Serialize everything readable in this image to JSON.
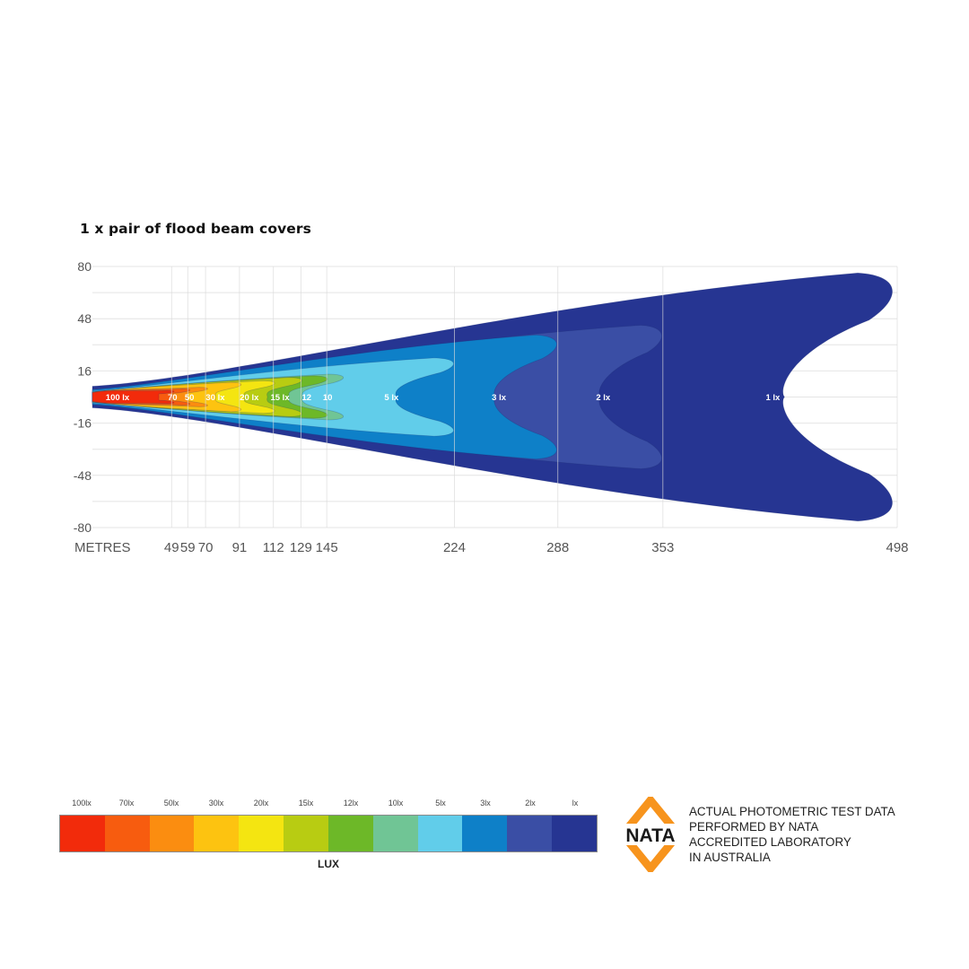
{
  "chart_data": {
    "type": "heatmap",
    "title": "1 x pair of flood beam covers",
    "xlabel": "METRES",
    "ylabel": "",
    "y_ticks": [
      "80",
      "48",
      "16",
      "-16",
      "-48",
      "-80"
    ],
    "x_ticks": [
      {
        "label": "49",
        "value": 49
      },
      {
        "label": "59",
        "value": 59
      },
      {
        "label": "70",
        "value": 70
      },
      {
        "label": "91",
        "value": 91
      },
      {
        "label": "112",
        "value": 112
      },
      {
        "label": "129",
        "value": 129
      },
      {
        "label": "145",
        "value": 145
      },
      {
        "label": "224",
        "value": 224
      },
      {
        "label": "288",
        "value": 288
      },
      {
        "label": "353",
        "value": 353
      },
      {
        "label": "498",
        "value": 498
      }
    ],
    "ylim": [
      -80,
      80
    ],
    "xlim": [
      0,
      498
    ],
    "grid": true,
    "zones": [
      {
        "lux": 100,
        "label": "100 lx",
        "reach_m": 49,
        "halfwidth_m": 4,
        "color": "#f22b0b"
      },
      {
        "lux": 70,
        "label": "70",
        "reach_m": 59,
        "halfwidth_m": 5,
        "color": "#f75c0f"
      },
      {
        "lux": 50,
        "label": "50",
        "reach_m": 70,
        "halfwidth_m": 6,
        "color": "#fb8d10"
      },
      {
        "lux": 30,
        "label": "30 lx",
        "reach_m": 91,
        "halfwidth_m": 9,
        "color": "#fdc310"
      },
      {
        "lux": 20,
        "label": "20 lx",
        "reach_m": 112,
        "halfwidth_m": 10,
        "color": "#f4e511"
      },
      {
        "lux": 15,
        "label": "15 lx",
        "reach_m": 129,
        "halfwidth_m": 12,
        "color": "#b8cc12"
      },
      {
        "lux": 12,
        "label": "12",
        "reach_m": 145,
        "halfwidth_m": 13,
        "color": "#6db828"
      },
      {
        "lux": 10,
        "label": "10",
        "reach_m": 155,
        "halfwidth_m": 14,
        "color": "#70c595"
      },
      {
        "lux": 5,
        "label": "5 lx",
        "reach_m": 224,
        "halfwidth_m": 24,
        "color": "#61cdea"
      },
      {
        "lux": 3,
        "label": "3 lx",
        "reach_m": 288,
        "halfwidth_m": 38,
        "color": "#0e80c8"
      },
      {
        "lux": 2,
        "label": "2 lx",
        "reach_m": 353,
        "halfwidth_m": 44,
        "color": "#3a4ea5"
      },
      {
        "lux": 1,
        "label": "1 lx",
        "reach_m": 498,
        "halfwidth_m": 76,
        "color": "#263592"
      }
    ]
  },
  "legend": {
    "unit": "LUX",
    "items": [
      {
        "label": "100lx",
        "color": "#f22b0b"
      },
      {
        "label": "70lx",
        "color": "#f75c0f"
      },
      {
        "label": "50lx",
        "color": "#fb8d10"
      },
      {
        "label": "30lx",
        "color": "#fdc310"
      },
      {
        "label": "20lx",
        "color": "#f4e511"
      },
      {
        "label": "15lx",
        "color": "#b8cc12"
      },
      {
        "label": "12lx",
        "color": "#6db828"
      },
      {
        "label": "10lx",
        "color": "#70c595"
      },
      {
        "label": "5lx",
        "color": "#61cdea"
      },
      {
        "label": "3lx",
        "color": "#0e80c8"
      },
      {
        "label": "2lx",
        "color": "#3a4ea5"
      },
      {
        "label": "lx",
        "color": "#263592"
      }
    ]
  },
  "nata": {
    "logo_text": "NATA",
    "logo_color": "#f7941d",
    "lines": [
      "ACTUAL PHOTOMETRIC TEST DATA",
      "PERFORMED BY NATA",
      "ACCREDITED LABORATORY",
      "IN AUSTRALIA"
    ]
  }
}
